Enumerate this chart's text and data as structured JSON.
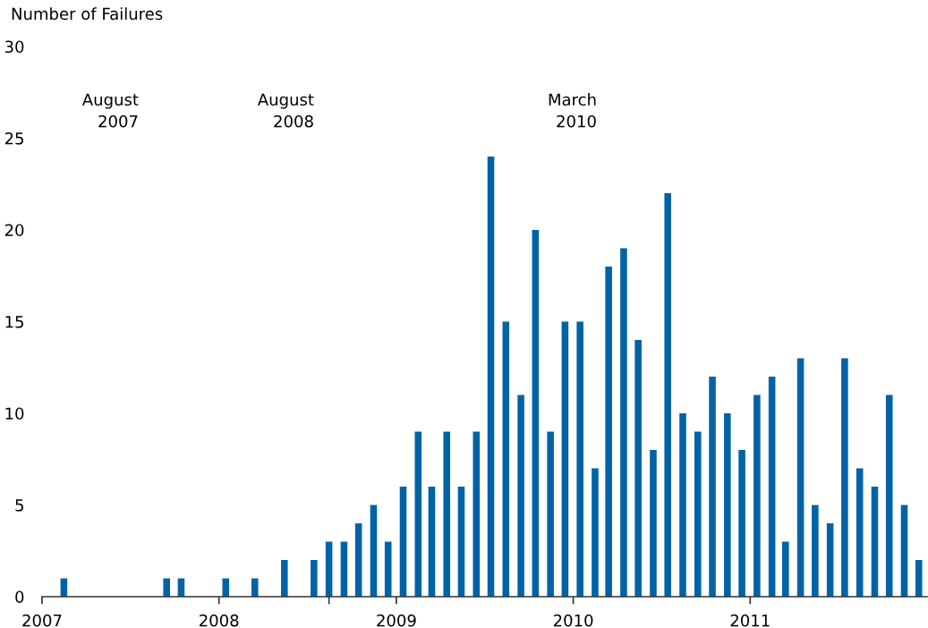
{
  "chart_data": {
    "type": "bar",
    "ylabel": "Number of Failures",
    "color": "#0063a6",
    "x": [
      "2007-02-15",
      "2007-09-15",
      "2007-10-15",
      "2008-01-15",
      "2008-03-15",
      "2008-05-15",
      "2008-07-15",
      "2008-08-15",
      "2008-09-15",
      "2008-10-15",
      "2008-11-15",
      "2008-12-15",
      "2009-01-15",
      "2009-02-15",
      "2009-03-15",
      "2009-04-15",
      "2009-05-15",
      "2009-06-15",
      "2009-07-15",
      "2009-08-15",
      "2009-09-15",
      "2009-10-15",
      "2009-11-15",
      "2009-12-15",
      "2010-01-15",
      "2010-02-15",
      "2010-03-15",
      "2010-04-15",
      "2010-05-15",
      "2010-06-15",
      "2010-07-15",
      "2010-08-15",
      "2010-09-15",
      "2010-10-15",
      "2010-11-15",
      "2010-12-15",
      "2011-01-15",
      "2011-02-15",
      "2011-03-15",
      "2011-04-15",
      "2011-05-15",
      "2011-06-15",
      "2011-07-15",
      "2011-08-15",
      "2011-09-15",
      "2011-10-15",
      "2011-11-15",
      "2011-12-15"
    ],
    "values": [
      1,
      1,
      1,
      1,
      1,
      2,
      2,
      3,
      3,
      4,
      5,
      3,
      6,
      9,
      6,
      9,
      6,
      9,
      24,
      15,
      11,
      20,
      9,
      15,
      15,
      7,
      18,
      19,
      14,
      8,
      22,
      10,
      9,
      12,
      10,
      8,
      11,
      12,
      3,
      13,
      5,
      4,
      13,
      7,
      6,
      11,
      5,
      2
    ],
    "xlim": [
      "2007-01",
      "2012-01"
    ],
    "xticks": [
      {
        "value": "2007-01",
        "label": "2007"
      },
      {
        "value": "2008-01",
        "label": "2008"
      },
      {
        "value": "2008-08-15",
        "label": null
      },
      {
        "value": "2009-01",
        "label": "2009"
      },
      {
        "value": "2010-01",
        "label": "2010"
      },
      {
        "value": "2011-01",
        "label": "2011"
      }
    ],
    "ylim": [
      0,
      30
    ],
    "yticks": [
      0,
      5,
      10,
      15,
      20,
      25,
      30
    ],
    "grid": false,
    "annotations": [
      "August\n2007",
      "August\n2008",
      "March\n2010"
    ]
  }
}
